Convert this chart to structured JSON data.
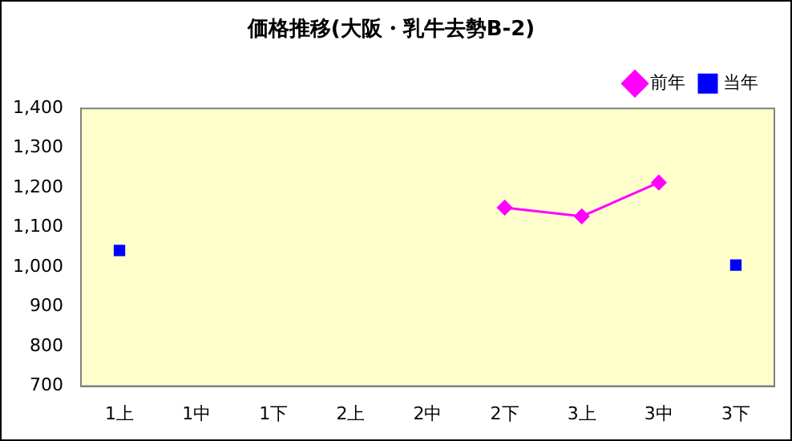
{
  "chart_data": {
    "type": "line",
    "title": "価格推移(大阪・乳牛去勢B-2)",
    "categories": [
      "1上",
      "1中",
      "1下",
      "2上",
      "2中",
      "2下",
      "3上",
      "3中",
      "3下"
    ],
    "series": [
      {
        "name": "前年",
        "color": "#ff00ff",
        "marker": "diamond",
        "line_style": "solid",
        "values": [
          null,
          null,
          null,
          null,
          null,
          1150,
          1128,
          1213,
          null
        ]
      },
      {
        "name": "当年",
        "type": "scatter",
        "color": "#0000ff",
        "marker": "square",
        "values": [
          1042,
          null,
          null,
          null,
          null,
          null,
          null,
          null,
          1005
        ]
      }
    ],
    "ylim": [
      700,
      1400
    ],
    "yticks": [
      {
        "value": 700,
        "label": "700"
      },
      {
        "value": 800,
        "label": "800"
      },
      {
        "value": 900,
        "label": "900"
      },
      {
        "value": 1000,
        "label": "1,000"
      },
      {
        "value": 1100,
        "label": "1,100"
      },
      {
        "value": 1200,
        "label": "1,200"
      },
      {
        "value": 1300,
        "label": "1,300"
      },
      {
        "value": 1400,
        "label": "1,400"
      }
    ],
    "grid": false,
    "legend": "top right"
  }
}
